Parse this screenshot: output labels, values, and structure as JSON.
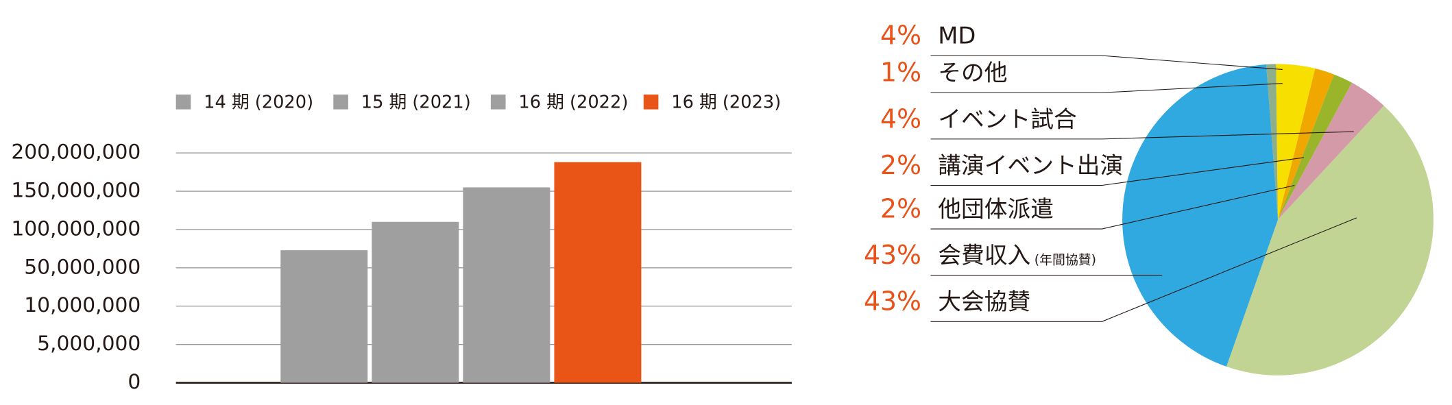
{
  "chart_data": [
    {
      "type": "bar",
      "categories": [
        null
      ],
      "series": [
        {
          "name": "14 期 (2020)",
          "color": "#9f9f9f",
          "values": [
            73000000
          ]
        },
        {
          "name": "15 期 (2021)",
          "color": "#9f9f9f",
          "values": [
            110000000
          ]
        },
        {
          "name": "16 期 (2022)",
          "color": "#9f9f9f",
          "values": [
            155000000
          ]
        },
        {
          "name": "16 期 (2023)",
          "color": "#e95516",
          "values": [
            188000000
          ]
        }
      ],
      "ylim": [
        0,
        200000000
      ],
      "yticks": [
        0,
        {
          "value": 5000000,
          "label": "5,000,000"
        },
        {
          "value": 10000000,
          "label": "10,000,000"
        },
        {
          "value": 50000000,
          "label": "50,000,000"
        },
        {
          "value": 100000000,
          "label": "100,000,000"
        },
        {
          "value": 150000000,
          "label": "150,000,000"
        },
        {
          "value": 200000000,
          "label": "200,000,000"
        }
      ],
      "grid": true
    },
    {
      "type": "pie",
      "categories": [
        "MD",
        "その他",
        "イベント試合",
        "講演イベント出演",
        "他団体派遣",
        "会費収入",
        "大会協賛"
      ],
      "label_notes": [
        null,
        null,
        null,
        null,
        null,
        "(年間協賛)",
        null
      ],
      "values": [
        4,
        1,
        4,
        2,
        2,
        43,
        43
      ],
      "value_labels": [
        "4%",
        "1%",
        "4%",
        "2%",
        "2%",
        "43%",
        "43%"
      ],
      "colors": [
        "#f7e000",
        "#8fae8a",
        "#d49aa8",
        "#f0a800",
        "#9bb52a",
        "#30a8e0",
        "#c1d494"
      ],
      "label_color": "#e8531a"
    }
  ]
}
